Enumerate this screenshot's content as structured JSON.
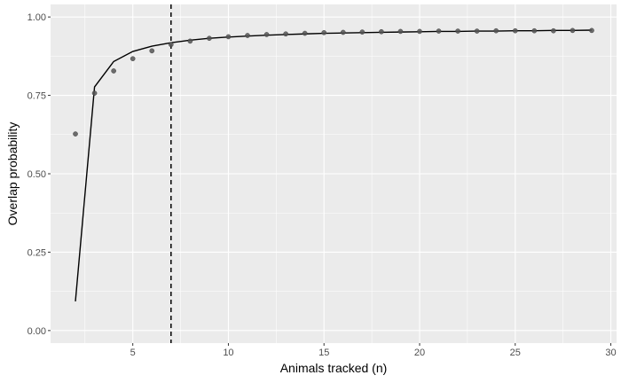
{
  "chart_data": {
    "type": "scatter",
    "xlabel": "Animals tracked (n)",
    "ylabel": "Overlap probability",
    "xlim": [
      0.7,
      30.3
    ],
    "ylim": [
      -0.04,
      1.04
    ],
    "x_ticks": [
      5,
      10,
      15,
      20,
      25,
      30
    ],
    "x_tick_labels": [
      "5",
      "10",
      "15",
      "20",
      "25",
      "30"
    ],
    "y_ticks": [
      0,
      0.25,
      0.5,
      0.75,
      1.0
    ],
    "y_tick_labels": [
      "0.00",
      "0.25",
      "0.50",
      "0.75",
      "1.00"
    ],
    "grid": true,
    "legend": "none",
    "background": "#ebebeb",
    "point_color": "#555555",
    "line_color": "#000000",
    "series": [
      {
        "type": "points",
        "x": [
          2,
          3,
          4,
          5,
          6,
          7,
          8,
          9,
          10,
          11,
          12,
          13,
          14,
          15,
          16,
          17,
          18,
          19,
          20,
          21,
          22,
          23,
          24,
          25,
          26,
          27,
          28,
          29
        ],
        "y": [
          0.627,
          0.757,
          0.828,
          0.867,
          0.892,
          0.912,
          0.923,
          0.932,
          0.937,
          0.941,
          0.944,
          0.946,
          0.948,
          0.95,
          0.951,
          0.952,
          0.953,
          0.954,
          0.954,
          0.955,
          0.955,
          0.955,
          0.956,
          0.956,
          0.956,
          0.956,
          0.957,
          0.957
        ]
      },
      {
        "type": "line",
        "x": [
          2,
          3,
          4,
          5,
          6,
          7,
          8,
          9,
          10,
          11,
          12,
          13,
          14,
          15,
          16,
          17,
          18,
          19,
          20,
          21,
          22,
          23,
          24,
          25,
          26,
          27,
          28,
          29
        ],
        "y": [
          0.093,
          0.777,
          0.858,
          0.89,
          0.907,
          0.918,
          0.926,
          0.932,
          0.936,
          0.939,
          0.942,
          0.944,
          0.946,
          0.948,
          0.949,
          0.95,
          0.951,
          0.952,
          0.953,
          0.954,
          0.954,
          0.955,
          0.955,
          0.956,
          0.956,
          0.957,
          0.957,
          0.958
        ]
      }
    ],
    "vline": {
      "x": 7,
      "style": "dashed"
    }
  }
}
